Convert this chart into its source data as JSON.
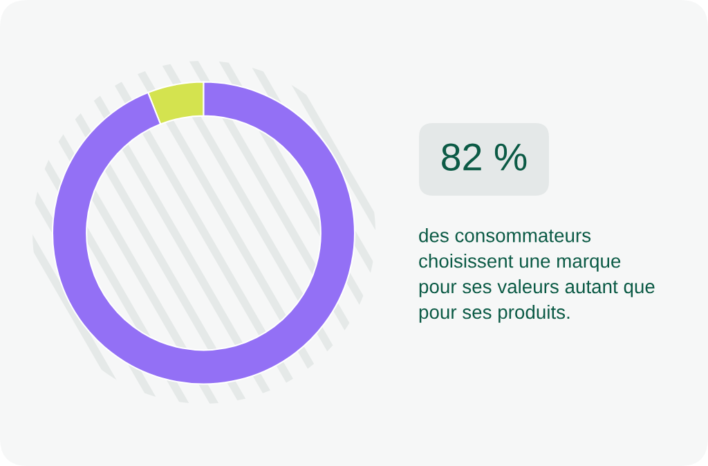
{
  "chart_data": {
    "type": "donut",
    "categories": [
      null,
      null
    ],
    "values": [
      6,
      94
    ],
    "colors": [
      "#d4e34f",
      "#9370f5"
    ],
    "annotations": [
      "82 %",
      "des consommateurs\nchoisissent une marque\npour ses valeurs autant que\npour ses produits."
    ]
  }
}
